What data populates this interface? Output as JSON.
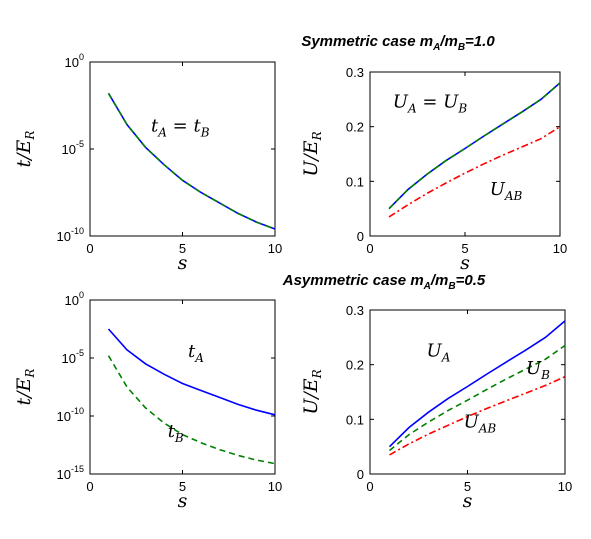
{
  "titles": {
    "top": {
      "main": "Symmetric case m",
      "a": "A",
      "mid": "/m",
      "b": "B",
      "end": "=1.0"
    },
    "bottom": {
      "main": "Asymmetric case m",
      "a": "A",
      "mid": "/m",
      "b": "B",
      "end": "=0.5"
    }
  },
  "colors": {
    "blue": "#0000ff",
    "green": "#008000",
    "red": "#ff0000"
  },
  "chart_data": [
    {
      "id": "top-left",
      "type": "line",
      "xlabel": "s",
      "ylabel": {
        "base": "t/E",
        "sub": "R"
      },
      "xlim": [
        0,
        10
      ],
      "yscale": "log",
      "ylim_log10": [
        -10,
        0
      ],
      "xticks": [
        0,
        5,
        10
      ],
      "yticks": [
        {
          "base": "10",
          "exp": "0",
          "v": 0
        },
        {
          "base": "10",
          "exp": "-5",
          "v": -5
        },
        {
          "base": "10",
          "exp": "-10",
          "v": -10
        }
      ],
      "series": [
        {
          "color": "blue",
          "dash": "solid",
          "x": [
            1,
            2,
            3,
            4,
            5,
            6,
            7,
            8,
            9,
            10
          ],
          "log10y": [
            -1.8,
            -3.6,
            -4.9,
            -5.9,
            -6.8,
            -7.5,
            -8.1,
            -8.7,
            -9.2,
            -9.6
          ]
        },
        {
          "color": "green",
          "dash": "dashed",
          "x": [
            1,
            2,
            3,
            4,
            5,
            6,
            7,
            8,
            9,
            10
          ],
          "log10y": [
            -1.8,
            -3.6,
            -4.9,
            -5.9,
            -6.8,
            -7.5,
            -8.1,
            -8.7,
            -9.2,
            -9.6
          ]
        }
      ],
      "annotations": [
        {
          "x": 3.3,
          "y": -4.0,
          "base": "t",
          "sub": "A",
          "eq": " = t",
          "sub2": "B"
        }
      ]
    },
    {
      "id": "top-right",
      "type": "line",
      "xlabel": "s",
      "ylabel": {
        "base": "U/E",
        "sub": "R"
      },
      "xlim": [
        0,
        10
      ],
      "ylim": [
        0,
        0.3
      ],
      "xticks": [
        0,
        5,
        10
      ],
      "yticks": [
        "0",
        "0.1",
        "0.2",
        "0.3"
      ],
      "series": [
        {
          "color": "blue",
          "dash": "solid",
          "x": [
            1,
            2,
            3,
            4,
            5,
            6,
            7,
            8,
            9,
            10
          ],
          "y": [
            0.05,
            0.085,
            0.113,
            0.138,
            0.16,
            0.183,
            0.205,
            0.227,
            0.25,
            0.28
          ]
        },
        {
          "color": "green",
          "dash": "dashed",
          "x": [
            1,
            2,
            3,
            4,
            5,
            6,
            7,
            8,
            9,
            10
          ],
          "y": [
            0.05,
            0.085,
            0.113,
            0.138,
            0.16,
            0.183,
            0.205,
            0.227,
            0.25,
            0.28
          ]
        },
        {
          "color": "red",
          "dash": "dashdot",
          "x": [
            1,
            2,
            3,
            4,
            5,
            6,
            7,
            8,
            9,
            10
          ],
          "y": [
            0.035,
            0.057,
            0.078,
            0.097,
            0.115,
            0.132,
            0.148,
            0.163,
            0.178,
            0.2
          ]
        }
      ],
      "annotations": [
        {
          "x": 1.2,
          "y": 0.235,
          "base": "U",
          "sub": "A",
          "eq": " = U",
          "sub2": "B"
        },
        {
          "x": 6.3,
          "y": 0.075,
          "base": "U",
          "sub": "AB",
          "eq": "",
          "sub2": ""
        }
      ]
    },
    {
      "id": "bottom-left",
      "type": "line",
      "xlabel": "s",
      "ylabel": {
        "base": "t/E",
        "sub": "R"
      },
      "xlim": [
        0,
        10
      ],
      "yscale": "log",
      "ylim_log10": [
        -15,
        0
      ],
      "xticks": [
        0,
        5,
        10
      ],
      "yticks": [
        {
          "base": "10",
          "exp": "0",
          "v": 0
        },
        {
          "base": "10",
          "exp": "-5",
          "v": -5
        },
        {
          "base": "10",
          "exp": "-10",
          "v": -10
        },
        {
          "base": "10",
          "exp": "-15",
          "v": -15
        }
      ],
      "series": [
        {
          "color": "blue",
          "dash": "solid",
          "x": [
            1,
            2,
            3,
            4,
            5,
            6,
            7,
            8,
            9,
            10
          ],
          "log10y": [
            -2.5,
            -4.3,
            -5.5,
            -6.4,
            -7.2,
            -7.8,
            -8.4,
            -9.0,
            -9.5,
            -9.9
          ]
        },
        {
          "color": "green",
          "dash": "dashed",
          "x": [
            1,
            2,
            3,
            4,
            5,
            6,
            7,
            8,
            9,
            10
          ],
          "log10y": [
            -4.8,
            -7.5,
            -9.3,
            -10.6,
            -11.6,
            -12.3,
            -12.9,
            -13.4,
            -13.8,
            -14.1
          ]
        }
      ],
      "annotations": [
        {
          "x": 5.3,
          "y": -4.9,
          "base": "t",
          "sub": "A",
          "eq": "",
          "sub2": ""
        },
        {
          "x": 4.2,
          "y": -11.8,
          "base": "t",
          "sub": "B",
          "eq": "",
          "sub2": ""
        }
      ]
    },
    {
      "id": "bottom-right",
      "type": "line",
      "xlabel": "s",
      "ylabel": {
        "base": "U/E",
        "sub": "R"
      },
      "xlim": [
        0,
        10
      ],
      "ylim": [
        0,
        0.3
      ],
      "xticks": [
        0,
        5,
        10
      ],
      "yticks": [
        "0",
        "0.1",
        "0.2",
        "0.3"
      ],
      "series": [
        {
          "color": "blue",
          "dash": "solid",
          "x": [
            1,
            2,
            3,
            4,
            5,
            6,
            7,
            8,
            9,
            10
          ],
          "y": [
            0.05,
            0.085,
            0.113,
            0.138,
            0.16,
            0.183,
            0.205,
            0.227,
            0.25,
            0.28
          ]
        },
        {
          "color": "green",
          "dash": "dashed",
          "x": [
            1,
            2,
            3,
            4,
            5,
            6,
            7,
            8,
            9,
            10
          ],
          "y": [
            0.043,
            0.072,
            0.095,
            0.116,
            0.135,
            0.155,
            0.174,
            0.192,
            0.21,
            0.235
          ]
        },
        {
          "color": "red",
          "dash": "dashdot",
          "x": [
            1,
            2,
            3,
            4,
            5,
            6,
            7,
            8,
            9,
            10
          ],
          "y": [
            0.035,
            0.055,
            0.073,
            0.089,
            0.105,
            0.12,
            0.134,
            0.148,
            0.162,
            0.178
          ]
        }
      ],
      "annotations": [
        {
          "x": 2.9,
          "y": 0.215,
          "base": "U",
          "sub": "A",
          "eq": "",
          "sub2": ""
        },
        {
          "x": 8.0,
          "y": 0.183,
          "base": "U",
          "sub": "B",
          "eq": "",
          "sub2": ""
        },
        {
          "x": 4.8,
          "y": 0.085,
          "base": "U",
          "sub": "AB",
          "eq": "",
          "sub2": ""
        }
      ]
    }
  ]
}
